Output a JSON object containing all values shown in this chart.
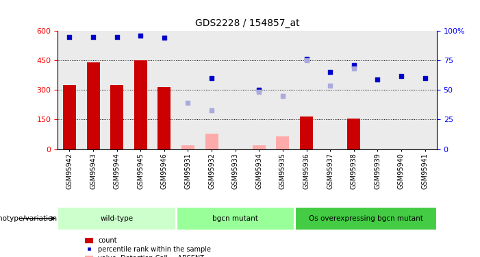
{
  "title": "GDS2228 / 154857_at",
  "samples": [
    "GSM95942",
    "GSM95943",
    "GSM95944",
    "GSM95945",
    "GSM95946",
    "GSM95931",
    "GSM95932",
    "GSM95933",
    "GSM95934",
    "GSM95935",
    "GSM95936",
    "GSM95937",
    "GSM95938",
    "GSM95939",
    "GSM95940",
    "GSM95941"
  ],
  "count_present": [
    325,
    440,
    325,
    450,
    315,
    null,
    null,
    null,
    null,
    null,
    165,
    null,
    155,
    null,
    null,
    null
  ],
  "count_absent": [
    null,
    null,
    null,
    null,
    null,
    20,
    80,
    null,
    20,
    65,
    null,
    null,
    null,
    null,
    null,
    null
  ],
  "rank_present_left": [
    null,
    null,
    null,
    null,
    null,
    null,
    195,
    null,
    290,
    null,
    450,
    320,
    410,
    null,
    null,
    null
  ],
  "rank_absent_left": [
    null,
    null,
    null,
    null,
    null,
    235,
    null,
    null,
    null,
    270,
    null,
    null,
    null,
    null,
    null,
    null
  ],
  "blue_pct_present": [
    95,
    95,
    95,
    96,
    94,
    null,
    60,
    null,
    50,
    null,
    76,
    65,
    71,
    59,
    62,
    60
  ],
  "blue_pct_absent": [
    null,
    null,
    null,
    null,
    null,
    null,
    null,
    null,
    null,
    null,
    null,
    null,
    null,
    null,
    null,
    null
  ],
  "groups": [
    {
      "label": "wild-type",
      "start": 0,
      "end": 5,
      "color": "#ccffcc"
    },
    {
      "label": "bgcn mutant",
      "start": 5,
      "end": 10,
      "color": "#99ff99"
    },
    {
      "label": "Os overexpressing bgcn mutant",
      "start": 10,
      "end": 16,
      "color": "#44cc44"
    }
  ],
  "ylim_left": [
    0,
    600
  ],
  "ylim_right": [
    0,
    100
  ],
  "yticks_left": [
    0,
    150,
    300,
    450,
    600
  ],
  "yticks_right": [
    0,
    25,
    50,
    75,
    100
  ],
  "bar_color_present": "#cc0000",
  "bar_color_absent": "#ffaaaa",
  "scatter_present": "#0000cc",
  "scatter_absent": "#aaaadd",
  "plot_bg": "#ffffff",
  "col_bg": "#d8d8d8"
}
